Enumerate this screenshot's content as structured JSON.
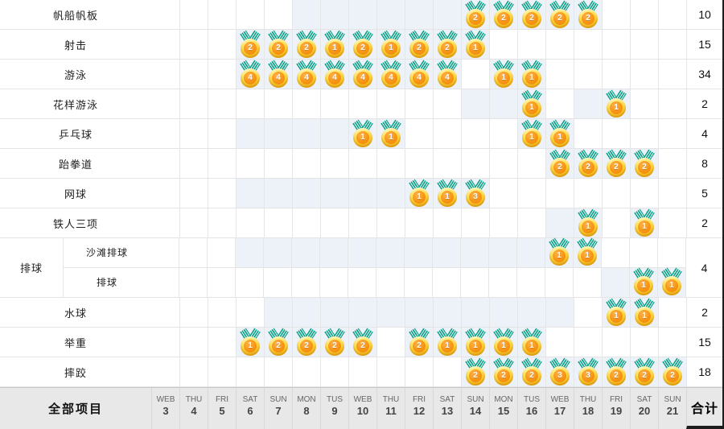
{
  "footer": {
    "all_events_label": "全部项目",
    "total_label": "合计",
    "days": [
      {
        "dow": "WEB",
        "date": "3"
      },
      {
        "dow": "THU",
        "date": "4"
      },
      {
        "dow": "FRI",
        "date": "5"
      },
      {
        "dow": "SAT",
        "date": "6"
      },
      {
        "dow": "SUN",
        "date": "7"
      },
      {
        "dow": "MON",
        "date": "8"
      },
      {
        "dow": "TUS",
        "date": "9"
      },
      {
        "dow": "WEB",
        "date": "10"
      },
      {
        "dow": "THU",
        "date": "11"
      },
      {
        "dow": "FRI",
        "date": "12"
      },
      {
        "dow": "SAT",
        "date": "13"
      },
      {
        "dow": "SUN",
        "date": "14"
      },
      {
        "dow": "MON",
        "date": "15"
      },
      {
        "dow": "TUS",
        "date": "16"
      },
      {
        "dow": "WEB",
        "date": "17"
      },
      {
        "dow": "THU",
        "date": "18"
      },
      {
        "dow": "FRI",
        "date": "19"
      },
      {
        "dow": "SAT",
        "date": "20"
      },
      {
        "dow": "SUN",
        "date": "21"
      }
    ]
  },
  "rows": [
    {
      "type": "sport",
      "label": "帆船帆板",
      "total": "10",
      "medals": [
        {
          "day": 14,
          "count": "2"
        },
        {
          "day": 15,
          "count": "2"
        },
        {
          "day": 16,
          "count": "2"
        },
        {
          "day": 17,
          "count": "2"
        },
        {
          "day": 18,
          "count": "2"
        }
      ],
      "shaded": [
        [
          8,
          18
        ]
      ]
    },
    {
      "type": "sport",
      "label": "射击",
      "total": "15",
      "medals": [
        {
          "day": 6,
          "count": "2"
        },
        {
          "day": 7,
          "count": "2"
        },
        {
          "day": 8,
          "count": "2"
        },
        {
          "day": 9,
          "count": "1"
        },
        {
          "day": 10,
          "count": "2"
        },
        {
          "day": 11,
          "count": "1"
        },
        {
          "day": 12,
          "count": "2"
        },
        {
          "day": 13,
          "count": "2"
        },
        {
          "day": 14,
          "count": "1"
        }
      ],
      "shaded": [
        [
          6,
          14
        ]
      ]
    },
    {
      "type": "sport",
      "label": "游泳",
      "total": "34",
      "medals": [
        {
          "day": 6,
          "count": "4"
        },
        {
          "day": 7,
          "count": "4"
        },
        {
          "day": 8,
          "count": "4"
        },
        {
          "day": 9,
          "count": "4"
        },
        {
          "day": 10,
          "count": "4"
        },
        {
          "day": 11,
          "count": "4"
        },
        {
          "day": 12,
          "count": "4"
        },
        {
          "day": 13,
          "count": "4"
        },
        {
          "day": 15,
          "count": "1"
        },
        {
          "day": 16,
          "count": "1"
        }
      ],
      "shaded": [
        [
          6,
          13
        ],
        [
          15,
          16
        ]
      ]
    },
    {
      "type": "sport",
      "label": "花样游泳",
      "total": "2",
      "medals": [
        {
          "day": 16,
          "count": "1"
        },
        {
          "day": 19,
          "count": "1"
        }
      ],
      "shaded": [
        [
          14,
          16
        ],
        [
          18,
          19
        ]
      ]
    },
    {
      "type": "sport",
      "label": "乒乓球",
      "total": "4",
      "medals": [
        {
          "day": 10,
          "count": "1"
        },
        {
          "day": 11,
          "count": "1"
        },
        {
          "day": 16,
          "count": "1"
        },
        {
          "day": 17,
          "count": "1"
        }
      ],
      "shaded": [
        [
          6,
          11
        ],
        [
          16,
          17
        ]
      ]
    },
    {
      "type": "sport",
      "label": "跆拳道",
      "total": "8",
      "medals": [
        {
          "day": 17,
          "count": "2"
        },
        {
          "day": 18,
          "count": "2"
        },
        {
          "day": 19,
          "count": "2"
        },
        {
          "day": 20,
          "count": "2"
        }
      ],
      "shaded": [
        [
          17,
          20
        ]
      ]
    },
    {
      "type": "sport",
      "label": "网球",
      "total": "5",
      "medals": [
        {
          "day": 12,
          "count": "1"
        },
        {
          "day": 13,
          "count": "1"
        },
        {
          "day": 14,
          "count": "3"
        }
      ],
      "shaded": [
        [
          6,
          14
        ]
      ]
    },
    {
      "type": "sport",
      "label": "铁人三项",
      "total": "2",
      "medals": [
        {
          "day": 18,
          "count": "1"
        },
        {
          "day": 20,
          "count": "1"
        }
      ],
      "shaded": [
        [
          17,
          18
        ],
        [
          20,
          20
        ]
      ]
    },
    {
      "type": "group",
      "group_label": "排球",
      "total": "4",
      "subrows": [
        {
          "label": "沙滩排球",
          "medals": [
            {
              "day": 17,
              "count": "1"
            },
            {
              "day": 18,
              "count": "1"
            }
          ],
          "shaded": [
            [
              6,
              18
            ]
          ]
        },
        {
          "label": "排球",
          "medals": [
            {
              "day": 20,
              "count": "1"
            },
            {
              "day": 21,
              "count": "1"
            }
          ],
          "shaded": [
            [
              19,
              21
            ]
          ]
        }
      ]
    },
    {
      "type": "sport",
      "label": "水球",
      "total": "2",
      "medals": [
        {
          "day": 19,
          "count": "1"
        },
        {
          "day": 20,
          "count": "1"
        }
      ],
      "shaded": [
        [
          7,
          17
        ],
        [
          19,
          20
        ]
      ]
    },
    {
      "type": "sport",
      "label": "举重",
      "total": "15",
      "medals": [
        {
          "day": 6,
          "count": "1"
        },
        {
          "day": 7,
          "count": "2"
        },
        {
          "day": 8,
          "count": "2"
        },
        {
          "day": 9,
          "count": "2"
        },
        {
          "day": 10,
          "count": "2"
        },
        {
          "day": 12,
          "count": "2"
        },
        {
          "day": 13,
          "count": "1"
        },
        {
          "day": 14,
          "count": "1"
        },
        {
          "day": 15,
          "count": "1"
        },
        {
          "day": 16,
          "count": "1"
        }
      ],
      "shaded": [
        [
          6,
          10
        ],
        [
          12,
          16
        ]
      ]
    },
    {
      "type": "sport",
      "label": "摔跤",
      "total": "18",
      "medals": [
        {
          "day": 14,
          "count": "2"
        },
        {
          "day": 15,
          "count": "2"
        },
        {
          "day": 16,
          "count": "2"
        },
        {
          "day": 17,
          "count": "3"
        },
        {
          "day": 18,
          "count": "3"
        },
        {
          "day": 19,
          "count": "2"
        },
        {
          "day": 20,
          "count": "2"
        },
        {
          "day": 21,
          "count": "2"
        }
      ],
      "shaded": [
        [
          14,
          21
        ]
      ]
    }
  ],
  "colors": {
    "shaded_cell": "#edf1f8",
    "gridline": "#e6e6e6",
    "footer_bg": "#e8e8e8",
    "medal_gold": "#ffd12e",
    "medal_inner": "#f79414",
    "ribbon_teal": "#13a08d"
  },
  "chart_data": {
    "type": "table",
    "row_header_label": "全部项目",
    "column_total_label": "合计",
    "x_categories": [
      "WEB 3",
      "THU 4",
      "FRI 5",
      "SAT 6",
      "SUN 7",
      "MON 8",
      "TUS 9",
      "WEB 10",
      "THU 11",
      "FRI 12",
      "SAT 13",
      "SUN 14",
      "MON 15",
      "TUS 16",
      "WEB 17",
      "THU 18",
      "FRI 19",
      "SAT 20",
      "SUN 21"
    ],
    "series": [
      {
        "name": "帆船帆板",
        "values": [
          0,
          0,
          0,
          0,
          0,
          0,
          0,
          0,
          0,
          0,
          0,
          2,
          2,
          2,
          2,
          2,
          0,
          0,
          0
        ],
        "total": 10
      },
      {
        "name": "射击",
        "values": [
          0,
          0,
          0,
          2,
          2,
          2,
          1,
          2,
          1,
          2,
          2,
          1,
          0,
          0,
          0,
          0,
          0,
          0,
          0
        ],
        "total": 15
      },
      {
        "name": "游泳",
        "values": [
          0,
          0,
          0,
          4,
          4,
          4,
          4,
          4,
          4,
          4,
          4,
          0,
          1,
          1,
          0,
          0,
          0,
          0,
          0
        ],
        "total": 34
      },
      {
        "name": "花样游泳",
        "values": [
          0,
          0,
          0,
          0,
          0,
          0,
          0,
          0,
          0,
          0,
          0,
          0,
          0,
          1,
          0,
          0,
          1,
          0,
          0
        ],
        "total": 2
      },
      {
        "name": "乒乓球",
        "values": [
          0,
          0,
          0,
          0,
          0,
          0,
          0,
          1,
          1,
          0,
          0,
          0,
          0,
          1,
          1,
          0,
          0,
          0,
          0
        ],
        "total": 4
      },
      {
        "name": "跆拳道",
        "values": [
          0,
          0,
          0,
          0,
          0,
          0,
          0,
          0,
          0,
          0,
          0,
          0,
          0,
          0,
          2,
          2,
          2,
          2,
          0
        ],
        "total": 8
      },
      {
        "name": "网球",
        "values": [
          0,
          0,
          0,
          0,
          0,
          0,
          0,
          0,
          0,
          1,
          1,
          3,
          0,
          0,
          0,
          0,
          0,
          0,
          0
        ],
        "total": 5
      },
      {
        "name": "铁人三项",
        "values": [
          0,
          0,
          0,
          0,
          0,
          0,
          0,
          0,
          0,
          0,
          0,
          0,
          0,
          0,
          0,
          1,
          0,
          1,
          0
        ],
        "total": 2
      },
      {
        "name": "沙滩排球",
        "group": "排球",
        "values": [
          0,
          0,
          0,
          0,
          0,
          0,
          0,
          0,
          0,
          0,
          0,
          0,
          0,
          0,
          1,
          1,
          0,
          0,
          0
        ],
        "group_total": 4
      },
      {
        "name": "排球",
        "group": "排球",
        "values": [
          0,
          0,
          0,
          0,
          0,
          0,
          0,
          0,
          0,
          0,
          0,
          0,
          0,
          0,
          0,
          0,
          0,
          1,
          1
        ],
        "group_total": 4
      },
      {
        "name": "水球",
        "values": [
          0,
          0,
          0,
          0,
          0,
          0,
          0,
          0,
          0,
          0,
          0,
          0,
          0,
          0,
          0,
          0,
          1,
          1,
          0
        ],
        "total": 2
      },
      {
        "name": "举重",
        "values": [
          0,
          0,
          0,
          1,
          2,
          2,
          2,
          2,
          0,
          2,
          1,
          1,
          1,
          1,
          0,
          0,
          0,
          0,
          0
        ],
        "total": 15
      },
      {
        "name": "摔跤",
        "values": [
          0,
          0,
          0,
          0,
          0,
          0,
          0,
          0,
          0,
          0,
          0,
          2,
          2,
          2,
          3,
          3,
          2,
          2,
          2
        ],
        "total": 18
      }
    ]
  }
}
